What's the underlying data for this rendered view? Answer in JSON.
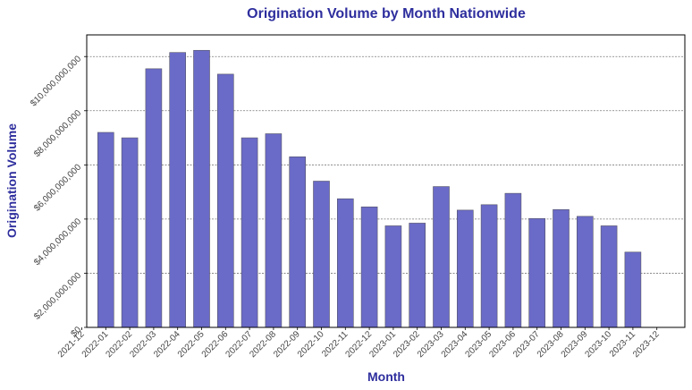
{
  "colors": {
    "bar_fill": "#6a6ac8",
    "bar_stroke": "#555566",
    "title": "#2e2e9e",
    "axis_label": "#2e2e9e",
    "grid": "#777777",
    "frame": "#000000",
    "tick_text": "#444444"
  },
  "chart_data": {
    "type": "bar",
    "title": "Origination Volume by Month Nationwide",
    "xlabel": "Month",
    "ylabel": "Origination Volume",
    "ylim": [
      0,
      10800000000
    ],
    "grid": true,
    "grid_axis": "y",
    "x_tick_labels": [
      "2021-12",
      "2022-01",
      "2022-02",
      "2022-03",
      "2022-04",
      "2022-05",
      "2022-06",
      "2022-07",
      "2022-08",
      "2022-09",
      "2022-10",
      "2022-11",
      "2022-12",
      "2023-01",
      "2023-02",
      "2023-03",
      "2023-04",
      "2023-05",
      "2023-06",
      "2023-07",
      "2023-08",
      "2023-09",
      "2023-10",
      "2023-11",
      "2023-12"
    ],
    "y_ticks": [
      0,
      2000000000,
      4000000000,
      6000000000,
      8000000000,
      10000000000
    ],
    "y_tick_labels": [
      "$0",
      "$2,000,000,000",
      "$4,000,000,000",
      "$6,000,000,000",
      "$8,000,000,000",
      "$10,000,000,000"
    ],
    "categories": [
      "2022-01",
      "2022-02",
      "2022-03",
      "2022-04",
      "2022-05",
      "2022-06",
      "2022-07",
      "2022-08",
      "2022-09",
      "2022-10",
      "2022-11",
      "2022-12",
      "2023-01",
      "2023-02",
      "2023-03",
      "2023-04",
      "2023-05",
      "2023-06",
      "2023-07",
      "2023-08",
      "2023-09",
      "2023-10",
      "2023-11"
    ],
    "values": [
      7200000000,
      7000000000,
      9550000000,
      10150000000,
      10230000000,
      9350000000,
      7000000000,
      7150000000,
      6300000000,
      5400000000,
      4750000000,
      4450000000,
      3750000000,
      3850000000,
      5200000000,
      4330000000,
      4530000000,
      4950000000,
      4020000000,
      4350000000,
      4100000000,
      3750000000,
      2780000000
    ]
  }
}
